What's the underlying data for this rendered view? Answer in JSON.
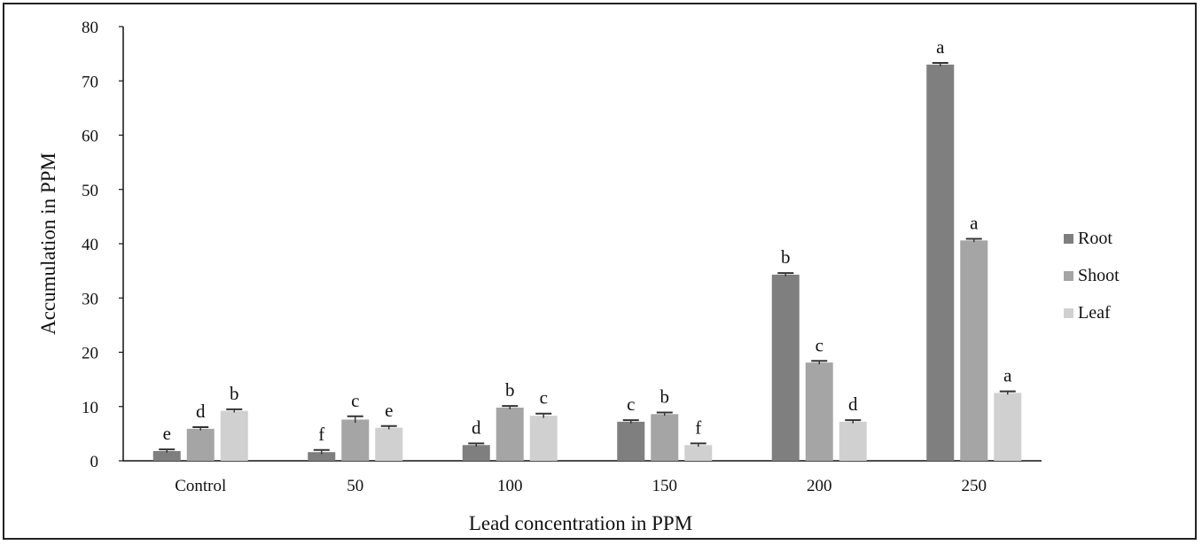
{
  "chart_data": {
    "type": "bar",
    "title": "",
    "xlabel": "Lead concentration in PPM",
    "ylabel": "Accumulation in PPM",
    "ylim": [
      0,
      80
    ],
    "yticks": [
      0,
      10,
      20,
      30,
      40,
      50,
      60,
      70,
      80
    ],
    "grid": false,
    "legend_position": "right",
    "categories": [
      "Control",
      "50",
      "100",
      "150",
      "200",
      "250"
    ],
    "series": [
      {
        "name": "Root",
        "color": "#7f7f7f",
        "values": [
          1.8,
          1.6,
          2.9,
          7.2,
          34.3,
          73.0
        ],
        "errors": [
          0.3,
          0.4,
          0.3,
          0.3,
          0.3,
          0.3
        ],
        "labels": [
          "e",
          "f",
          "d",
          "c",
          "b",
          "a"
        ]
      },
      {
        "name": "Shoot",
        "color": "#a5a5a5",
        "values": [
          5.9,
          7.6,
          9.8,
          8.6,
          18.1,
          40.6
        ],
        "errors": [
          0.3,
          0.6,
          0.3,
          0.3,
          0.3,
          0.3
        ],
        "labels": [
          "d",
          "c",
          "b",
          "b",
          "c",
          "a"
        ]
      },
      {
        "name": "Leaf",
        "color": "#d0d0d0",
        "values": [
          9.2,
          6.1,
          8.3,
          2.9,
          7.2,
          12.5
        ],
        "errors": [
          0.3,
          0.3,
          0.4,
          0.3,
          0.3,
          0.3
        ],
        "labels": [
          "b",
          "e",
          "c",
          "f",
          "d",
          "a"
        ]
      }
    ]
  }
}
